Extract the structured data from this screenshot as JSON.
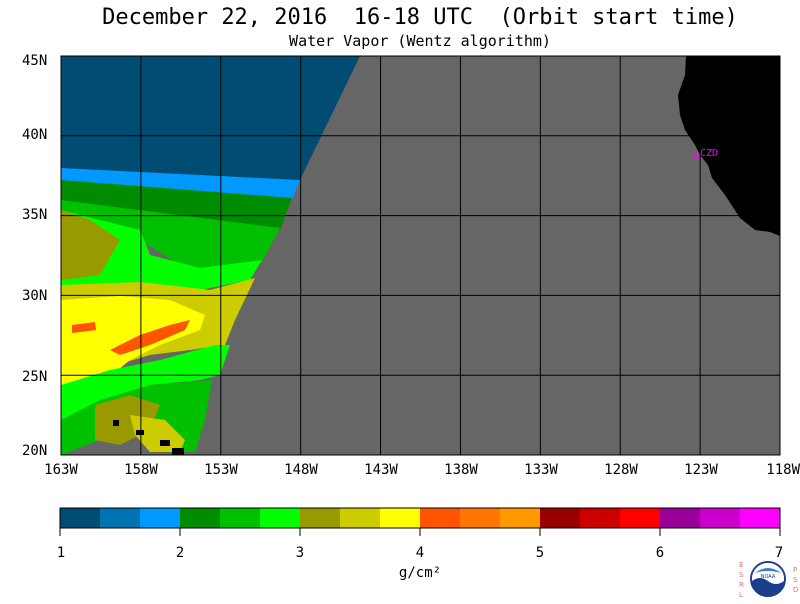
{
  "title": "December 22, 2016  16-18 UTC  (Orbit start time)",
  "subtitle": "Water Vapor (Wentz algorithm)",
  "map": {
    "lat_labels": [
      "45N",
      "40N",
      "35N",
      "30N",
      "25N",
      "20N"
    ],
    "lon_labels": [
      "163W",
      "158W",
      "153W",
      "148W",
      "143W",
      "138W",
      "133W",
      "128W",
      "123W",
      "118W"
    ],
    "lat_range": [
      20,
      45
    ],
    "lon_range": [
      -163,
      -118
    ],
    "station_label": "CZD",
    "colors": {
      "no_data": "#666666",
      "land": "#000000",
      "grid": "#000000",
      "station": "#ff00ff"
    }
  },
  "colorbar": {
    "labels": [
      "1",
      "2",
      "3",
      "4",
      "5",
      "6",
      "7"
    ],
    "unit": "g/cm²",
    "range": [
      1,
      7
    ],
    "colors": [
      "#004c73",
      "#0073b3",
      "#0099ff",
      "#008c00",
      "#00c000",
      "#00ff00",
      "#999900",
      "#cccc00",
      "#ffff00",
      "#ff5500",
      "#ff7700",
      "#ff9900",
      "#990000",
      "#cc0000",
      "#ff0000",
      "#990099",
      "#cc00cc",
      "#ff00ff"
    ]
  },
  "logo": {
    "left_letters": [
      "E",
      "S",
      "R",
      "L"
    ],
    "right_letters": [
      "P",
      "S",
      "D"
    ],
    "center_text": "NOAA",
    "icon": "noaa-logo-icon"
  }
}
